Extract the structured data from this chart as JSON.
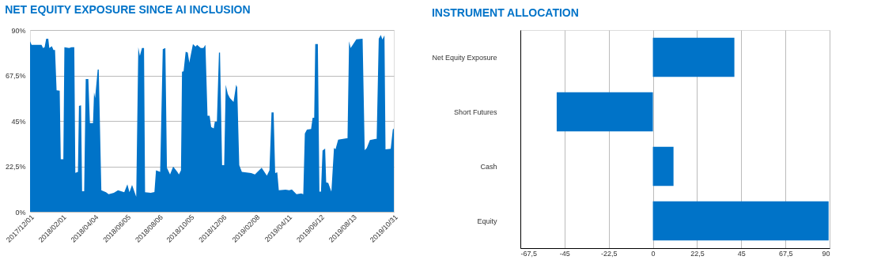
{
  "chart_data": [
    {
      "type": "area",
      "title": "NET EQUITY EXPOSURE SINCE AI INCLUSION",
      "color": "#0073c8",
      "grid": "y",
      "x": [
        "2017-12-01",
        "2017-12-04",
        "2017-12-23",
        "2017-12-26",
        "2017-12-29",
        "2018-01-01",
        "2018-01-05",
        "2018-01-07",
        "2018-01-12",
        "2018-01-15",
        "2018-01-18",
        "2018-01-21",
        "2018-01-27",
        "2018-01-29",
        "2018-02-03",
        "2018-02-05",
        "2018-02-14",
        "2018-02-19",
        "2018-02-24",
        "2018-02-26",
        "2018-03-03",
        "2018-03-05",
        "2018-03-09",
        "2018-03-11",
        "2018-03-15",
        "2018-03-18",
        "2018-03-23",
        "2018-03-26",
        "2018-04-01",
        "2018-04-03",
        "2018-04-05",
        "2018-04-10",
        "2018-04-12",
        "2018-04-17",
        "2018-04-26",
        "2018-05-01",
        "2018-05-11",
        "2018-05-19",
        "2018-05-31",
        "2018-06-06",
        "2018-06-10",
        "2018-06-15",
        "2018-06-23",
        "2018-06-27",
        "2018-06-30",
        "2018-07-04",
        "2018-07-08",
        "2018-07-10",
        "2018-07-21",
        "2018-07-28",
        "2018-07-31",
        "2018-08-08",
        "2018-08-13",
        "2018-08-18",
        "2018-08-21",
        "2018-08-27",
        "2018-09-02",
        "2018-09-10",
        "2018-09-13",
        "2018-09-17",
        "2018-09-19",
        "2018-09-22",
        "2018-09-26",
        "2018-09-30",
        "2018-10-03",
        "2018-10-10",
        "2018-10-15",
        "2018-10-18",
        "2018-10-25",
        "2018-10-30",
        "2018-11-03",
        "2018-11-07",
        "2018-11-11",
        "2018-11-14",
        "2018-11-19",
        "2018-11-21",
        "2018-11-25",
        "2018-11-29",
        "2018-12-01",
        "2018-12-05",
        "2018-12-09",
        "2018-12-12",
        "2018-12-16",
        "2018-12-20",
        "2018-12-27",
        "2019-01-01",
        "2019-01-03",
        "2019-01-07",
        "2019-01-12",
        "2019-01-30",
        "2019-02-06",
        "2019-02-19",
        "2019-03-01",
        "2019-03-06",
        "2019-03-10",
        "2019-03-14",
        "2019-03-17",
        "2019-03-21",
        "2019-03-24",
        "2019-04-06",
        "2019-04-13",
        "2019-04-18",
        "2019-04-27",
        "2019-05-06",
        "2019-05-10",
        "2019-05-13",
        "2019-05-17",
        "2019-05-25",
        "2019-05-28",
        "2019-05-31",
        "2019-06-02",
        "2019-06-07",
        "2019-06-10",
        "2019-06-13",
        "2019-06-16",
        "2019-06-21",
        "2019-06-23",
        "2019-06-27",
        "2019-07-03",
        "2019-07-08",
        "2019-07-11",
        "2019-07-16",
        "2019-08-01",
        "2019-08-03",
        "2019-08-06",
        "2019-08-09",
        "2019-08-14",
        "2019-08-20",
        "2019-09-01",
        "2019-09-05",
        "2019-09-09",
        "2019-09-15",
        "2019-09-26",
        "2019-09-28",
        "2019-10-02",
        "2019-10-06",
        "2019-10-09",
        "2019-10-13",
        "2019-10-15",
        "2019-10-25",
        "2019-10-29",
        "2019-10-31"
      ],
      "values": [
        84.4,
        82.7,
        82.7,
        81.1,
        81.5,
        85.7,
        85.7,
        81.1,
        82.0,
        80.1,
        80.1,
        60.2,
        60.0,
        26.0,
        26.0,
        81.5,
        81.1,
        81.5,
        81.5,
        19.3,
        19.8,
        52.4,
        52.7,
        10.2,
        10.2,
        65.7,
        65.7,
        43.9,
        43.9,
        59.2,
        56.3,
        70.4,
        70.4,
        10.7,
        9.7,
        8.7,
        9.4,
        10.7,
        9.7,
        13.6,
        9.7,
        13.3,
        7.4,
        81.5,
        77.2,
        81.1,
        81.1,
        9.7,
        9.4,
        9.8,
        20.5,
        19.8,
        80.5,
        81.1,
        21.8,
        18.5,
        22.4,
        19.8,
        18.5,
        20.5,
        69.4,
        69.6,
        79.2,
        78.8,
        74.0,
        83.1,
        81.8,
        82.7,
        81.1,
        81.1,
        82.7,
        47.5,
        47.5,
        42.0,
        41.3,
        44.6,
        44.6,
        78.8,
        78.8,
        23.1,
        23.1,
        62.9,
        58.3,
        56.3,
        54.4,
        62.9,
        61.6,
        23.1,
        19.8,
        19.2,
        18.5,
        21.8,
        17.9,
        20.5,
        49.2,
        49.2,
        19.2,
        19.6,
        10.7,
        11.0,
        10.7,
        11.1,
        8.7,
        9.1,
        8.7,
        38.7,
        40.7,
        41.0,
        46.6,
        46.6,
        83.1,
        83.1,
        10.0,
        10.0,
        30.3,
        31.3,
        14.6,
        14.3,
        10.0,
        31.6,
        31.0,
        35.7,
        36.4,
        36.4,
        84.4,
        81.1,
        83.1,
        85.4,
        85.7,
        30.5,
        31.6,
        35.5,
        36.1,
        36.1,
        85.7,
        87.6,
        85.3,
        87.4,
        30.9,
        31.2,
        40.7,
        41.3
      ],
      "xlim": [
        "2017-12-01",
        "2019-10-31"
      ],
      "xticks": [
        {
          "value": "2017-12-01",
          "label": "2017/12/01"
        },
        {
          "value": "2018-02-01",
          "label": "2018/02/01"
        },
        {
          "value": "2018-04-04",
          "label": "2018/04/04"
        },
        {
          "value": "2018-06-05",
          "label": "2018/06/05"
        },
        {
          "value": "2018-08-06",
          "label": "2018/08/06"
        },
        {
          "value": "2018-10-05",
          "label": "2018/10/05"
        },
        {
          "value": "2018-12-06",
          "label": "2018/12/06"
        },
        {
          "value": "2019-02-08",
          "label": "2019/02/08"
        },
        {
          "value": "2019-04-11",
          "label": "2019/04/11"
        },
        {
          "value": "2019-06-12",
          "label": "2019/06/12"
        },
        {
          "value": "2019-08-13",
          "label": "2019/08/13"
        },
        {
          "value": "2019-10-31",
          "label": "2019/10/31"
        }
      ],
      "ylim": [
        0,
        90
      ],
      "yticks": [
        {
          "value": 0,
          "label": "0%"
        },
        {
          "value": 22.5,
          "label": "22,5%"
        },
        {
          "value": 45,
          "label": "45%"
        },
        {
          "value": 67.5,
          "label": "67,5%"
        },
        {
          "value": 90,
          "label": "90%"
        }
      ]
    },
    {
      "type": "bar",
      "orientation": "horizontal",
      "title": "INSTRUMENT ALLOCATION",
      "color": "#0073c8",
      "grid": "x",
      "categories": [
        "Net Equity Exposure",
        "Short Futures",
        "Cash",
        "Equity"
      ],
      "values": [
        41.5,
        -49,
        10.5,
        89.5
      ],
      "xlim": [
        -67.5,
        90
      ],
      "xticks": [
        {
          "value": -67.5,
          "label": "-67,5"
        },
        -45,
        {
          "value": -22.5,
          "label": "-22,5"
        },
        0,
        {
          "value": 22.5,
          "label": "22,5"
        },
        45,
        {
          "value": 67.5,
          "label": "67,5"
        },
        90
      ]
    }
  ]
}
